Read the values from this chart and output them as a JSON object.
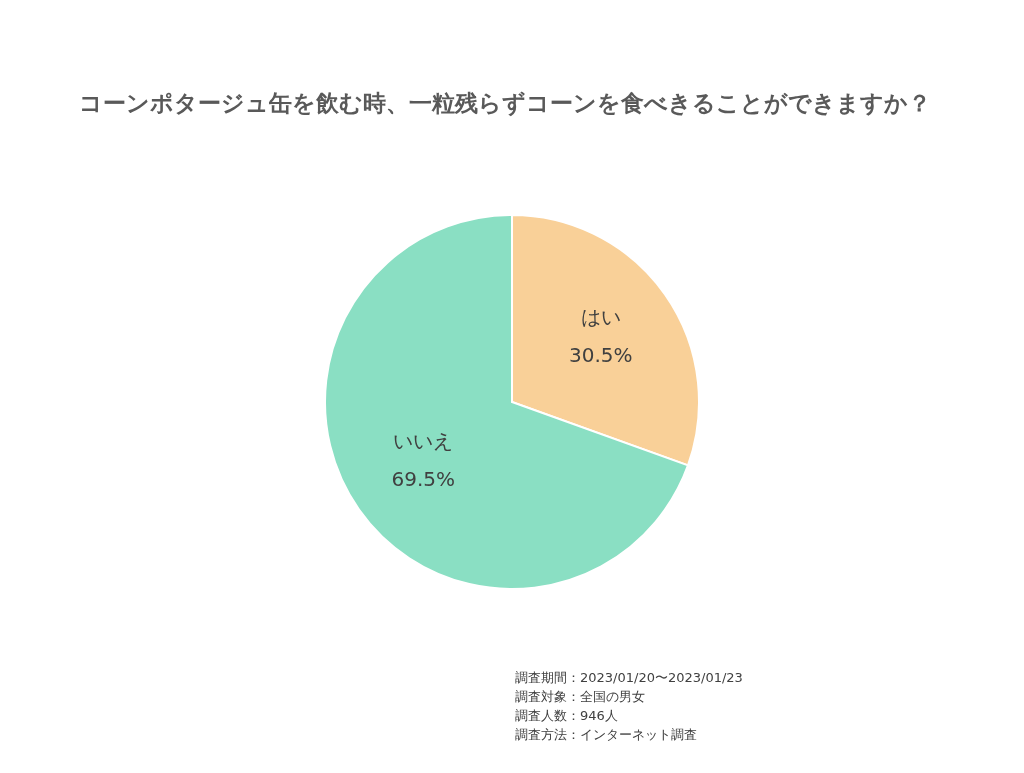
{
  "chart_data": {
    "type": "pie",
    "title": "コーンポタージュ缶を飲む時、一粒残らずコーンを食べきることができますか？",
    "categories": [
      "はい",
      "いいえ"
    ],
    "values": [
      30.5,
      69.5
    ],
    "colors": [
      "#f9d098",
      "#8adfc3"
    ],
    "value_labels": [
      "30.5%",
      "69.5%"
    ],
    "annotations": [
      "調査期間：2023/01/20〜2023/01/23",
      "調査対象：全国の男女",
      "調査人数：946人",
      "調査方法：インターネット調査"
    ]
  }
}
